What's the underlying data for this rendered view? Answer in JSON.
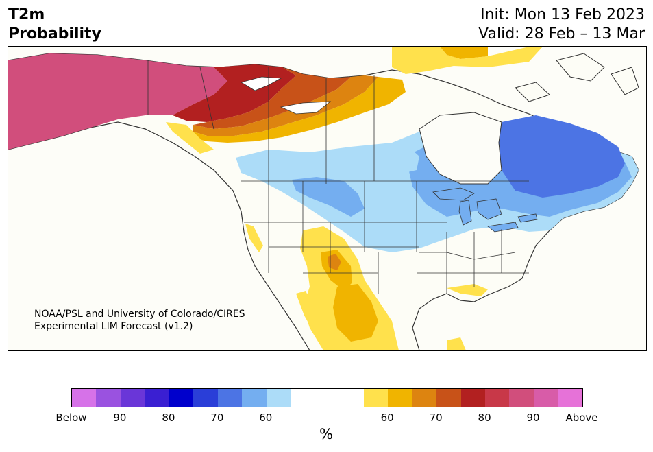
{
  "title": {
    "line1": "T2m",
    "line2": "Probability"
  },
  "dates": {
    "init": "Init: Mon 13 Feb 2023",
    "valid": "Valid: 28 Feb – 13 Mar"
  },
  "credit": {
    "line1": "NOAA/PSL and University of Colorado/CIRES",
    "line2": "Experimental LIM Forecast (v1.2)"
  },
  "colorbar": {
    "colors": [
      "#d672e8",
      "#9a52e0",
      "#6a36d8",
      "#3a1fd2",
      "#0000cc",
      "#2a3ed8",
      "#4c74e4",
      "#74aef0",
      "#acdcf8",
      "#ffffff",
      "#ffffff",
      "#ffffff",
      "#ffe14c",
      "#f0b400",
      "#dd8410",
      "#c85218",
      "#b22020",
      "#c83848",
      "#d14e7c",
      "#d85ca8",
      "#e672d8"
    ],
    "tick_labels": [
      "Below",
      "90",
      "80",
      "70",
      "60",
      "60",
      "70",
      "80",
      "90",
      "Above"
    ],
    "units": "%"
  },
  "map_colors": {
    "ocean": "#fdfdf8",
    "land_neutral": "#fdfdf6",
    "above_90": "#d14e7c",
    "above_85": "#c83848",
    "above_80": "#b22020",
    "above_75": "#c85218",
    "above_70": "#dd8410",
    "above_65": "#f0b400",
    "above_60": "#ffe14c",
    "below_60": "#acdcf8",
    "below_65": "#74aef0",
    "below_70": "#4c74e4",
    "borders": "#333333"
  }
}
